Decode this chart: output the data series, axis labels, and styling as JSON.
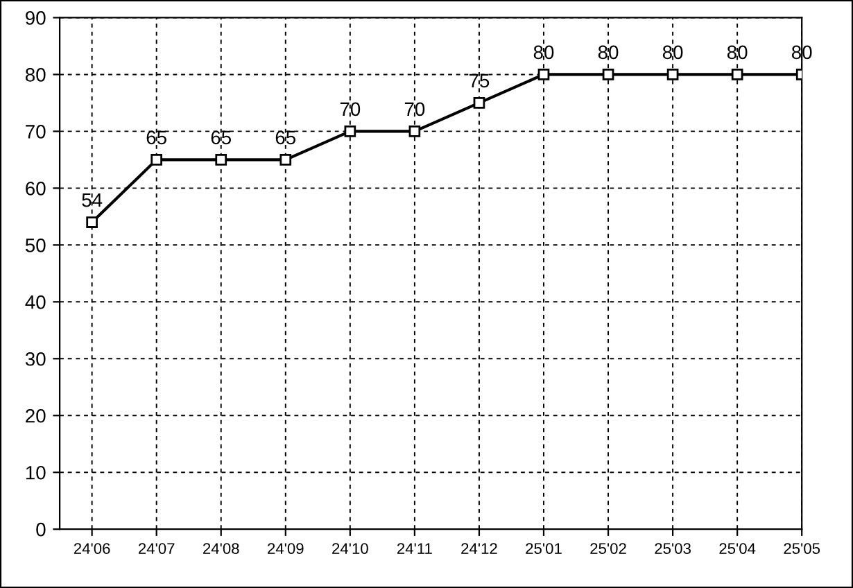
{
  "chart_data": {
    "type": "line",
    "categories": [
      "24'06",
      "24'07",
      "24'08",
      "24'09",
      "24'10",
      "24'11",
      "24'12",
      "25'01",
      "25'02",
      "25'03",
      "25'04",
      "25'05"
    ],
    "series": [
      {
        "color": "#000000",
        "values": [
          54,
          65,
          65,
          65,
          70,
          70,
          75,
          80,
          80,
          80,
          80,
          80
        ]
      }
    ],
    "ylim": [
      0,
      90
    ],
    "yticks": [
      0,
      10,
      20,
      30,
      40,
      50,
      60,
      70,
      80,
      90
    ],
    "grid": true,
    "marker": "square",
    "line_style": "solid",
    "data_labels": true,
    "legend": false
  }
}
